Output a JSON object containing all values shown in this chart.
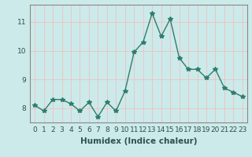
{
  "x": [
    0,
    1,
    2,
    3,
    4,
    5,
    6,
    7,
    8,
    9,
    10,
    11,
    12,
    13,
    14,
    15,
    16,
    17,
    18,
    19,
    20,
    21,
    22,
    23
  ],
  "y": [
    8.1,
    7.9,
    8.3,
    8.3,
    8.15,
    7.9,
    8.2,
    7.7,
    8.2,
    7.9,
    8.6,
    9.95,
    10.3,
    11.3,
    10.5,
    11.1,
    9.75,
    9.35,
    9.35,
    9.05,
    9.35,
    8.7,
    8.55,
    8.4
  ],
  "xlabel": "Humidex (Indice chaleur)",
  "ylabel": "",
  "ylim": [
    7.5,
    11.6
  ],
  "xlim": [
    -0.5,
    23.5
  ],
  "yticks": [
    8,
    9,
    10,
    11
  ],
  "xticks": [
    0,
    1,
    2,
    3,
    4,
    5,
    6,
    7,
    8,
    9,
    10,
    11,
    12,
    13,
    14,
    15,
    16,
    17,
    18,
    19,
    20,
    21,
    22,
    23
  ],
  "xtick_labels": [
    "0",
    "1",
    "2",
    "3",
    "4",
    "5",
    "6",
    "7",
    "8",
    "9",
    "10",
    "11",
    "12",
    "13",
    "14",
    "15",
    "16",
    "17",
    "18",
    "19",
    "20",
    "21",
    "22",
    "23"
  ],
  "line_color": "#2e7d6e",
  "marker": "*",
  "marker_size": 4,
  "bg_color": "#cceaea",
  "grid_color": "#f0c0c0",
  "spine_color": "#888888",
  "xlabel_fontsize": 7.5,
  "tick_fontsize": 6.5
}
